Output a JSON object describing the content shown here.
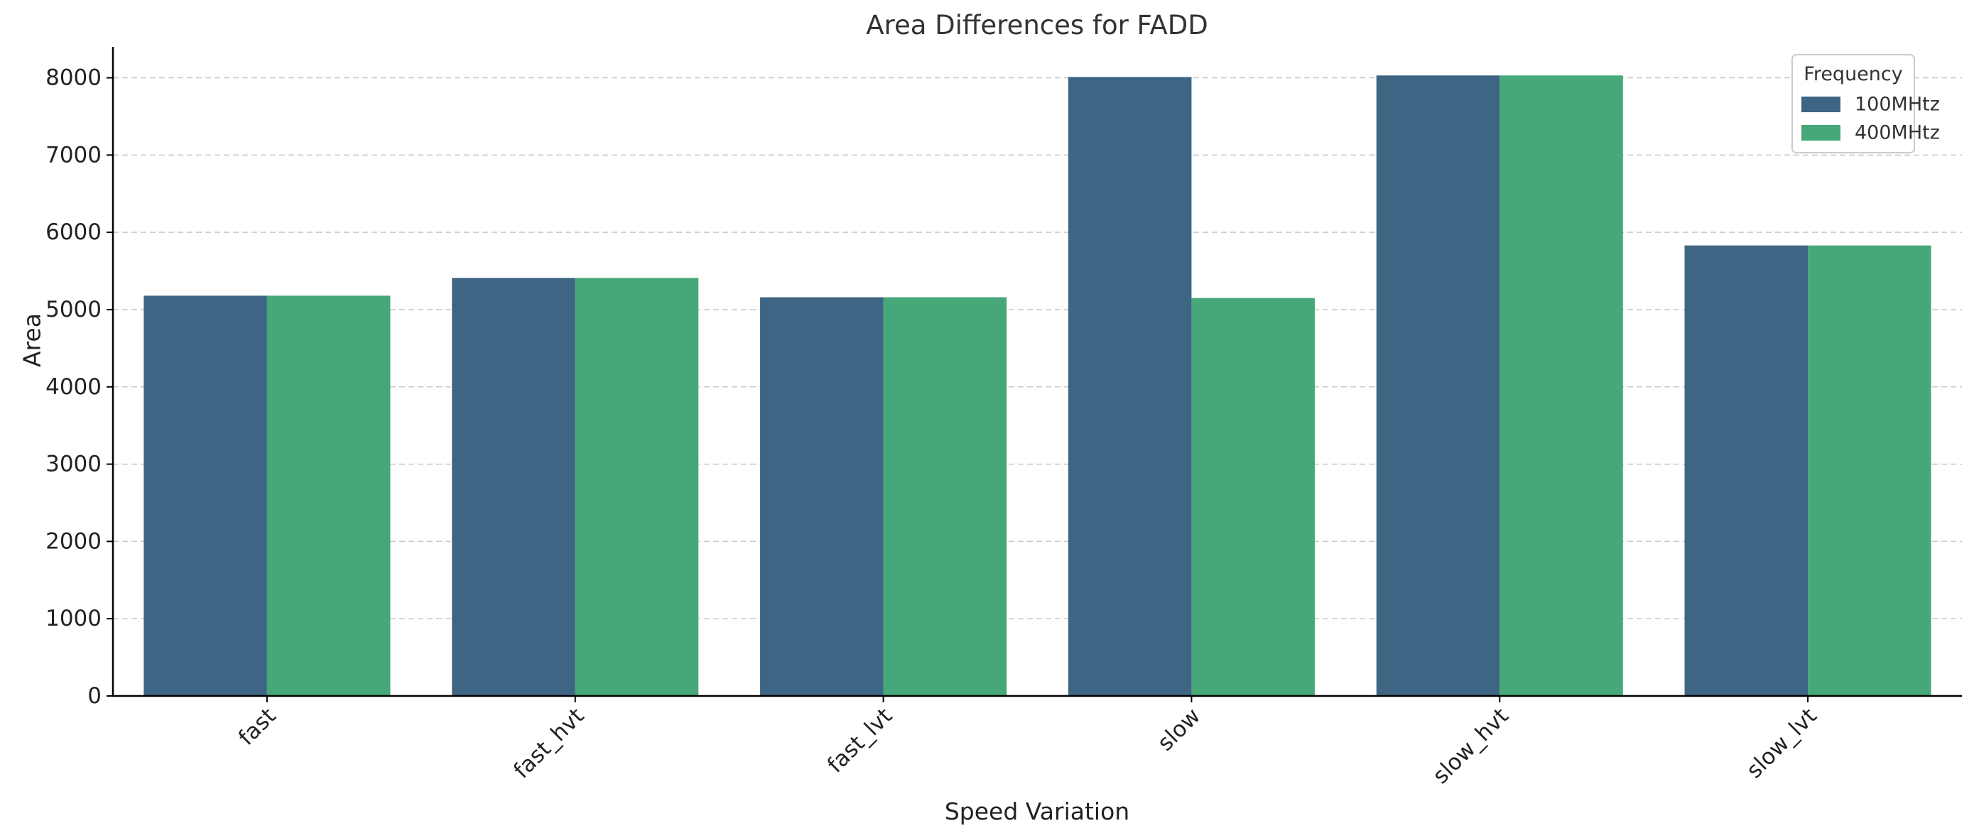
{
  "chart_data": {
    "type": "bar",
    "title": "Area Differences for FADD",
    "xlabel": "Speed Variation",
    "ylabel": "Area",
    "categories": [
      "fast",
      "fast_hvt",
      "fast_lvt",
      "slow",
      "slow_hvt",
      "slow_lvt"
    ],
    "series": [
      {
        "name": "100MHtz",
        "color": "#3e6583",
        "values": [
          5180,
          5410,
          5160,
          8010,
          8030,
          5830
        ]
      },
      {
        "name": "400MHtz",
        "color": "#46a878",
        "values": [
          5180,
          5410,
          5160,
          5150,
          8030,
          5830
        ]
      }
    ],
    "ylim": [
      0,
      8400
    ],
    "yticks": [
      0,
      1000,
      2000,
      3000,
      4000,
      5000,
      6000,
      7000,
      8000
    ],
    "grid": "y-dashed",
    "legend": {
      "title": "Frequency",
      "placement": "top-right"
    }
  }
}
